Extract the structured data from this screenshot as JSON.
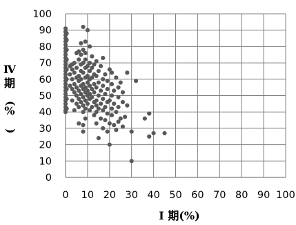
{
  "chart_data": {
    "type": "scatter",
    "title": "",
    "xlabel": "I 期(%)",
    "ylabel": "Ⅳ期(%)",
    "xlim": [
      0,
      100
    ],
    "ylim": [
      0,
      100
    ],
    "xticks": [
      0,
      10,
      20,
      30,
      40,
      50,
      60,
      70,
      80,
      90,
      100
    ],
    "yticks": [
      0,
      10,
      20,
      30,
      40,
      50,
      60,
      70,
      80,
      90,
      100
    ],
    "grid": true,
    "legend": "none",
    "marker_color": "#595959",
    "series": [
      {
        "points": [
          [
            0,
            91
          ],
          [
            0,
            89
          ],
          [
            0,
            87
          ],
          [
            0,
            85
          ],
          [
            0,
            83
          ],
          [
            0,
            81
          ],
          [
            0,
            79
          ],
          [
            0,
            77
          ],
          [
            0,
            75
          ],
          [
            0,
            73
          ],
          [
            0,
            71
          ],
          [
            0,
            69
          ],
          [
            0,
            67
          ],
          [
            0,
            65
          ],
          [
            0,
            63
          ],
          [
            0,
            61
          ],
          [
            0,
            59
          ],
          [
            0,
            57
          ],
          [
            0,
            55
          ],
          [
            0,
            53
          ],
          [
            0,
            51
          ],
          [
            0,
            49
          ],
          [
            0,
            47
          ],
          [
            0,
            45
          ],
          [
            0,
            43
          ],
          [
            0,
            41
          ],
          [
            0,
            40
          ],
          [
            0.5,
            88
          ],
          [
            0.5,
            84
          ],
          [
            0.5,
            78
          ],
          [
            0.5,
            72
          ],
          [
            0.5,
            66
          ],
          [
            0.5,
            60
          ],
          [
            0.5,
            54
          ],
          [
            0.5,
            48
          ],
          [
            0.5,
            42
          ],
          [
            8,
            92
          ],
          [
            10,
            90
          ],
          [
            9,
            83
          ],
          [
            7,
            82
          ],
          [
            11,
            80
          ],
          [
            8,
            78
          ],
          [
            6,
            77
          ],
          [
            5,
            76
          ],
          [
            9,
            76
          ],
          [
            7,
            75
          ],
          [
            12,
            74
          ],
          [
            17,
            73
          ],
          [
            6,
            72
          ],
          [
            9,
            72
          ],
          [
            14,
            71
          ],
          [
            4,
            70
          ],
          [
            8,
            70
          ],
          [
            11,
            70
          ],
          [
            3,
            69
          ],
          [
            7,
            69
          ],
          [
            13,
            69
          ],
          [
            2,
            68
          ],
          [
            10,
            68
          ],
          [
            16,
            68
          ],
          [
            5,
            67
          ],
          [
            9,
            67
          ],
          [
            12,
            67
          ],
          [
            20,
            66
          ],
          [
            3,
            66
          ],
          [
            7,
            65
          ],
          [
            11,
            65
          ],
          [
            15,
            65
          ],
          [
            28,
            64
          ],
          [
            21,
            64
          ],
          [
            4,
            64
          ],
          [
            8,
            64
          ],
          [
            13,
            63
          ],
          [
            18,
            63
          ],
          [
            2,
            63
          ],
          [
            6,
            62
          ],
          [
            10,
            62
          ],
          [
            14,
            62
          ],
          [
            5,
            61
          ],
          [
            9,
            61
          ],
          [
            12,
            61
          ],
          [
            17,
            60
          ],
          [
            23,
            61
          ],
          [
            3,
            60
          ],
          [
            7,
            60
          ],
          [
            11,
            60
          ],
          [
            19,
            59
          ],
          [
            32,
            59
          ],
          [
            6,
            59
          ],
          [
            10,
            58
          ],
          [
            15,
            58
          ],
          [
            25,
            58
          ],
          [
            4,
            57
          ],
          [
            8,
            57
          ],
          [
            13,
            57
          ],
          [
            21,
            57
          ],
          [
            2,
            56
          ],
          [
            7,
            56
          ],
          [
            11,
            56
          ],
          [
            17,
            56
          ],
          [
            5,
            55
          ],
          [
            9,
            55
          ],
          [
            14,
            55
          ],
          [
            24,
            55
          ],
          [
            3,
            54
          ],
          [
            8,
            54
          ],
          [
            12,
            54
          ],
          [
            19,
            54
          ],
          [
            6,
            53
          ],
          [
            10,
            53
          ],
          [
            16,
            53
          ],
          [
            22,
            53
          ],
          [
            4,
            52
          ],
          [
            9,
            52
          ],
          [
            13,
            52
          ],
          [
            26,
            52
          ],
          [
            7,
            51
          ],
          [
            11,
            51
          ],
          [
            18,
            51
          ],
          [
            5,
            50
          ],
          [
            10,
            50
          ],
          [
            15,
            50
          ],
          [
            21,
            50
          ],
          [
            8,
            49
          ],
          [
            12,
            49
          ],
          [
            24,
            49
          ],
          [
            6,
            48
          ],
          [
            11,
            48
          ],
          [
            17,
            48
          ],
          [
            3,
            47
          ],
          [
            9,
            47
          ],
          [
            14,
            47
          ],
          [
            20,
            47
          ],
          [
            7,
            46
          ],
          [
            13,
            46
          ],
          [
            19,
            46
          ],
          [
            26,
            46
          ],
          [
            5,
            45
          ],
          [
            10,
            45
          ],
          [
            16,
            45
          ],
          [
            22,
            45
          ],
          [
            8,
            44
          ],
          [
            14,
            44
          ],
          [
            28,
            44
          ],
          [
            6,
            43
          ],
          [
            12,
            43
          ],
          [
            18,
            43
          ],
          [
            24,
            43
          ],
          [
            9,
            42
          ],
          [
            15,
            42
          ],
          [
            21,
            42
          ],
          [
            4,
            41
          ],
          [
            11,
            41
          ],
          [
            17,
            41
          ],
          [
            8,
            40
          ],
          [
            14,
            40
          ],
          [
            23,
            40
          ],
          [
            19,
            39
          ],
          [
            38,
            39
          ],
          [
            13,
            38
          ],
          [
            21,
            38
          ],
          [
            27,
            37
          ],
          [
            9,
            36
          ],
          [
            16,
            36
          ],
          [
            25,
            36
          ],
          [
            36,
            36
          ],
          [
            18,
            35
          ],
          [
            24,
            34
          ],
          [
            6,
            33
          ],
          [
            14,
            33
          ],
          [
            20,
            33
          ],
          [
            8,
            32
          ],
          [
            22,
            32
          ],
          [
            26,
            31
          ],
          [
            17,
            30
          ],
          [
            23,
            29
          ],
          [
            8,
            28
          ],
          [
            19,
            28
          ],
          [
            30,
            28
          ],
          [
            40,
            27
          ],
          [
            45,
            27
          ],
          [
            38,
            25
          ],
          [
            15,
            24
          ],
          [
            20,
            20
          ],
          [
            30,
            10
          ]
        ]
      }
    ]
  }
}
